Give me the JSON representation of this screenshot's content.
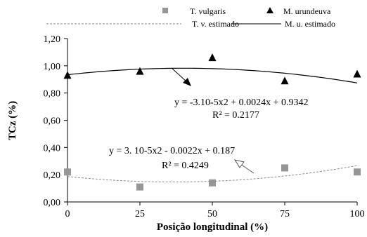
{
  "chart_data": {
    "type": "scatter",
    "xlabel": "Posição longitudinal (%)",
    "ylabel": "TCz (%)",
    "x_ticks": [
      "0",
      "25",
      "50",
      "75",
      "100"
    ],
    "y_ticks": [
      "0,00",
      "0,20",
      "0,40",
      "0,60",
      "0,80",
      "1,00",
      "1,20"
    ],
    "xlim": [
      0,
      100
    ],
    "ylim": [
      0,
      1.2
    ],
    "grid": false,
    "legend_position": "top",
    "series": [
      {
        "name": "T. vulgaris",
        "marker": "square",
        "color": "#969696",
        "x": [
          0,
          25,
          50,
          75,
          100
        ],
        "y": [
          0.22,
          0.11,
          0.14,
          0.25,
          0.22
        ]
      },
      {
        "name": "M. urundeuva",
        "marker": "triangle",
        "color": "#000000",
        "x": [
          0,
          25,
          50,
          75,
          100
        ],
        "y": [
          0.93,
          0.96,
          1.06,
          0.89,
          0.94
        ]
      }
    ],
    "fits": [
      {
        "name": "T. v. estimado",
        "style": "dashed",
        "color": "#8a8a8a",
        "coefficients": {
          "a": 3e-05,
          "b": -0.0022,
          "c": 0.187
        }
      },
      {
        "name": "M. u. estimado",
        "style": "solid",
        "color": "#000000",
        "coefficients": {
          "a": -3e-05,
          "b": 0.0024,
          "c": 0.9342
        }
      }
    ],
    "annotations": {
      "mu_equation": "y = -3.10-5x2 + 0.0024x + 0.9342",
      "mu_r2": "R² = 0.2177",
      "tv_equation": "y = 3. 10-5x2 - 0.0022x + 0.187",
      "tv_r2": "R² = 0.4249"
    }
  }
}
